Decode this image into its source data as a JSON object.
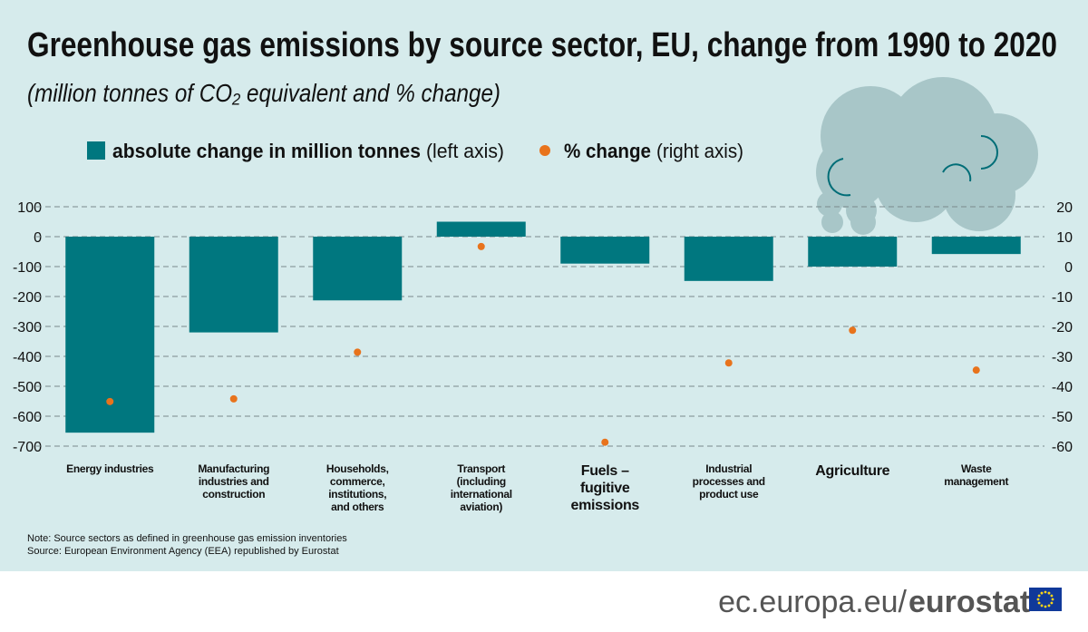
{
  "chart_data": {
    "type": "bar",
    "title": "Greenhouse gas emissions by source sector, EU, change from 1990 to 2020",
    "subtitle": "(million tonnes of CO₂ equivalent and % change)",
    "categories": [
      "Energy industries",
      "Manufacturing industries and construction",
      "Households, commerce, institutions, and others",
      "Transport (including international aviation)",
      "Fuels – fugitive emissions",
      "Industrial processes and product use",
      "Agriculture",
      "Waste management"
    ],
    "series": [
      {
        "name": "absolute change in million tonnes",
        "axis_note": "(left axis)",
        "color": "#00777f",
        "values": [
          -655,
          -320,
          -213,
          50,
          -90,
          -148,
          -100,
          -58
        ]
      },
      {
        "name": "% change",
        "axis_note": "(right axis)",
        "color": "#e8731c",
        "type": "scatter",
        "axis": "y2",
        "values": [
          -45.1,
          -44.2,
          -28.6,
          6.7,
          -58.7,
          -32.2,
          -21.3,
          -34.6
        ]
      }
    ],
    "ylim": [
      -700,
      100
    ],
    "yticks": [
      100,
      0,
      -100,
      -200,
      -300,
      -400,
      -500,
      -600,
      -700
    ],
    "y2lim": [
      -60,
      20
    ],
    "y2ticks": [
      20,
      10,
      0,
      -10,
      -20,
      -30,
      -40,
      -50,
      -60
    ],
    "grid": true,
    "notes": [
      "Note: Source sectors as defined in greenhouse gas emission inventories",
      "Source: European Environment Agency (EEA) republished by Eurostat"
    ]
  },
  "footer": {
    "site": "ec.europa.eu/",
    "brand": "eurostat"
  }
}
